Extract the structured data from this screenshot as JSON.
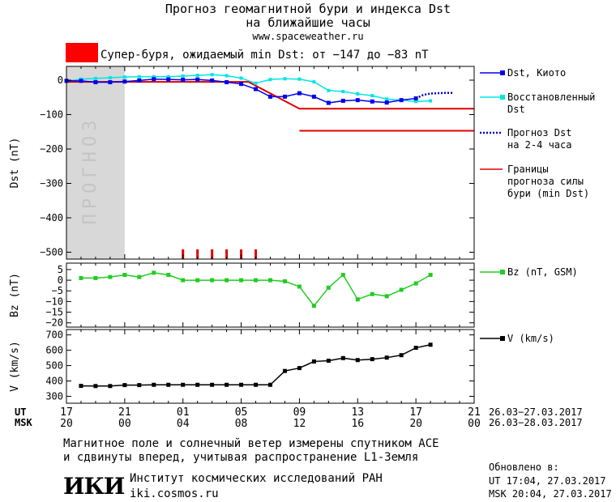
{
  "header": {
    "title_line1": "Прогноз геомагнитной бури и индекса Dst",
    "title_line2": "на ближайшие часы",
    "url": "www.spaceweather.ru",
    "storm_text": "Супер-буря, ожидаемый min Dst: от −147 до −83 nT",
    "storm_color": "#ff0000"
  },
  "colors": {
    "dst_kyoto": "#0000ee",
    "dst_restored": "#00e5e5",
    "dst_forecast": "#0000cc",
    "bounds": "#dd0000",
    "bz": "#22cc22",
    "v": "#000000",
    "forecast_band": "#d8d8d8"
  },
  "chart_data": [
    {
      "type": "line",
      "name": "dst",
      "ylabel": "Dst (nT)",
      "ylim": [
        -520,
        40
      ],
      "yticks": [
        0,
        -100,
        -200,
        -300,
        -400,
        -500
      ],
      "ytick_labels": [
        "0",
        "−100",
        "−200",
        "−300",
        "−400",
        "−500"
      ],
      "forecast_band_label": "ПРОГНОЗ",
      "forecast_band_x": [
        17,
        21
      ],
      "series": [
        {
          "name": "Dst, Киото",
          "x": [
            17,
            18,
            19,
            20,
            21,
            22,
            23,
            24,
            25,
            26,
            27,
            28,
            29,
            30,
            31,
            32,
            33,
            34,
            35,
            36,
            37,
            38,
            39,
            40,
            41
          ],
          "y": [
            -2,
            -2,
            -6,
            -6,
            -4,
            -1,
            3,
            2,
            1,
            2,
            -1,
            -6,
            -11,
            -26,
            -48,
            -48,
            -38,
            -48,
            -66,
            -60,
            -58,
            -62,
            -65,
            -58,
            -53
          ]
        },
        {
          "name": "Восстановленный Dst",
          "x": [
            17,
            18,
            19,
            20,
            21,
            22,
            23,
            24,
            25,
            26,
            27,
            28,
            29,
            30,
            31,
            32,
            33,
            34,
            35,
            36,
            37,
            38,
            39,
            40,
            41,
            42
          ],
          "y": [
            -3,
            3,
            5,
            7,
            9,
            10,
            10,
            10,
            12,
            14,
            16,
            13,
            6,
            -9,
            2,
            4,
            3,
            -5,
            -30,
            -33,
            -40,
            -45,
            -55,
            -58,
            -62,
            -60
          ]
        },
        {
          "name": "Прогноз Dst на 2-4 часа",
          "x": [
            41,
            41.5,
            42,
            42.5,
            43,
            43.5
          ],
          "y": [
            -53,
            -43,
            -39,
            -38,
            -37,
            -37
          ]
        },
        {
          "name": "Границы прогноза силы бури (min Dst)",
          "segments": [
            {
              "x": [
                17,
                29.5,
                33,
                45
              ],
              "y": [
                -5,
                -5,
                -83,
                -83
              ]
            },
            {
              "x": [
                33,
                45
              ],
              "y": [
                -147,
                -147
              ]
            }
          ]
        }
      ],
      "storm_markers_x": [
        25,
        26,
        27,
        28,
        29,
        30
      ]
    },
    {
      "type": "line",
      "name": "bz",
      "ylabel": "Bz (nT)",
      "ylim": [
        -22,
        8
      ],
      "yticks": [
        5,
        0,
        -5,
        -10,
        -15,
        -20
      ],
      "ytick_labels": [
        "5",
        "0",
        "−5",
        "−10",
        "−15",
        "−20"
      ],
      "series": [
        {
          "name": "Bz (nT, GSM)",
          "x": [
            18,
            19,
            20,
            21,
            22,
            23,
            24,
            25,
            26,
            27,
            28,
            29,
            30,
            31,
            32,
            33,
            34,
            35,
            36,
            37,
            38,
            39,
            40,
            41,
            42
          ],
          "y": [
            1,
            1,
            1.5,
            2.5,
            1.5,
            3.5,
            2.5,
            0,
            0,
            0,
            0,
            0,
            0,
            0,
            -0.5,
            -3,
            -12,
            -3.5,
            2.5,
            -9,
            -6.5,
            -7.5,
            -4.5,
            -1.5,
            2.5
          ]
        }
      ]
    },
    {
      "type": "line",
      "name": "v",
      "ylabel": "V (km/s)",
      "ylim": [
        255,
        735
      ],
      "yticks": [
        700,
        600,
        500,
        400,
        300
      ],
      "ytick_labels": [
        "700",
        "600",
        "500",
        "400",
        "300"
      ],
      "series": [
        {
          "name": "V (km/s)",
          "x": [
            18,
            19,
            20,
            21,
            22,
            23,
            24,
            25,
            26,
            27,
            28,
            29,
            30,
            31,
            32,
            33,
            34,
            35,
            36,
            37,
            38,
            39,
            40,
            41,
            42
          ],
          "y": [
            368,
            367,
            367,
            373,
            373,
            375,
            375,
            375,
            375,
            375,
            375,
            375,
            375,
            375,
            465,
            484,
            527,
            532,
            549,
            536,
            542,
            552,
            568,
            616,
            636
          ]
        }
      ]
    }
  ],
  "xaxis": {
    "ut_label": "UT",
    "msk_label": "MSK",
    "ut_ticks": [
      "17",
      "21",
      "01",
      "05",
      "09",
      "13",
      "17",
      "21"
    ],
    "msk_ticks": [
      "20",
      "00",
      "04",
      "08",
      "12",
      "16",
      "20",
      "00"
    ],
    "ut_range": "26.03−27.03.2017",
    "msk_range": "26.03−28.03.2017"
  },
  "footer": {
    "note_line1": "Магнитное поле и солнечный ветер измерены спутником ACE",
    "note_line2": "и сдвинуты вперед, учитывая распространение L1-Земля",
    "logo_text": "ИКИ",
    "institute": "Институт космических исследований РАН",
    "institute_url": "iki.cosmos.ru",
    "updated_label": "Обновлено в:",
    "updated_ut": "UT  17:04, 27.03.2017",
    "updated_msk": "MSK 20:04, 27.03.2017"
  }
}
